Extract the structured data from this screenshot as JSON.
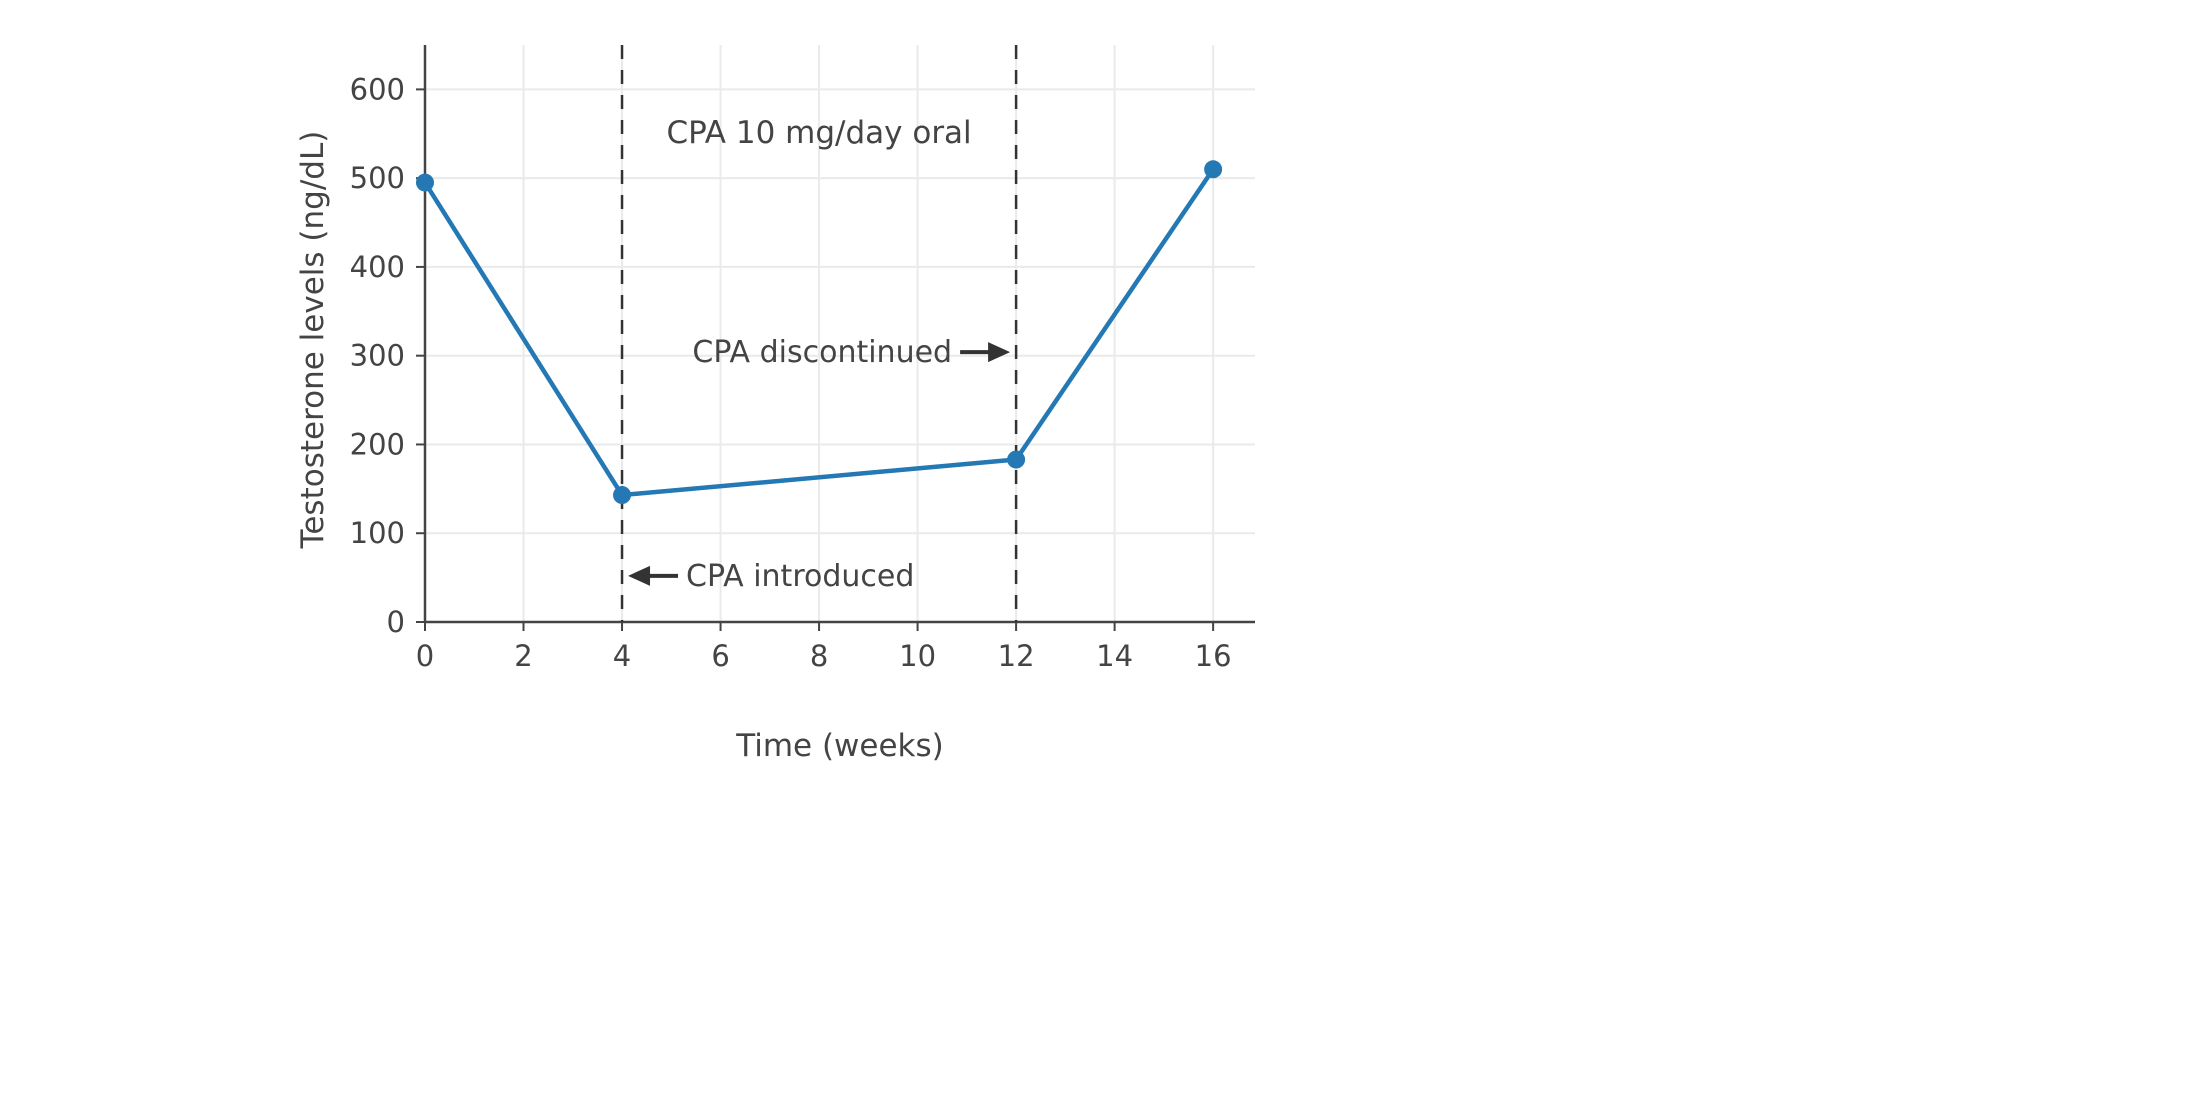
{
  "figure": {
    "background": "#ffffff"
  },
  "chart_data": {
    "type": "line",
    "title": "",
    "xlabel": "Time (weeks)",
    "ylabel": "Testosterone levels (ng/dL)",
    "series": [
      {
        "name": "Testosterone levels",
        "x": [
          0,
          4,
          12,
          16
        ],
        "y": [
          495,
          143,
          183,
          510
        ]
      }
    ],
    "xticks": [
      0,
      2,
      4,
      6,
      8,
      10,
      12,
      14,
      16
    ],
    "yticks": [
      0,
      100,
      200,
      300,
      400,
      500,
      600
    ],
    "xlim": [
      0,
      16.85
    ],
    "ylim": [
      0,
      650
    ],
    "grid": true,
    "legend": "none",
    "colors": {
      "line": "#2478b4",
      "marker": "#2478b4",
      "grid": "#eaeaea",
      "axis": "#444444",
      "text": "#444444",
      "annotation": "#333333",
      "dashed": "#333333"
    },
    "vlines": [
      {
        "x": 4,
        "style": "dashed"
      },
      {
        "x": 12,
        "style": "dashed"
      }
    ],
    "annotations": [
      {
        "id": "treatment-label",
        "text": "CPA 10 mg/day oral",
        "x": 8,
        "y": 551,
        "arrow": "none"
      },
      {
        "id": "cpa-discontinued",
        "text": "CPA discontinued",
        "x": 12,
        "y": 304,
        "arrow": "right"
      },
      {
        "id": "cpa-introduced",
        "text": "CPA introduced",
        "x": 4,
        "y": 52,
        "arrow": "left"
      }
    ]
  }
}
